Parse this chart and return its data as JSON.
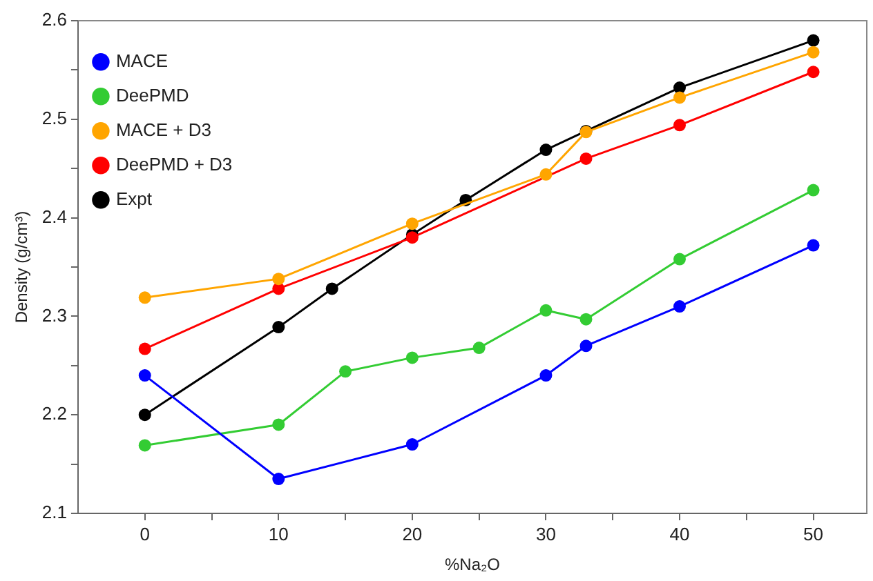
{
  "chart_data": {
    "type": "line",
    "xlabel": "%Na₂O",
    "ylabel": "Density (g/cm³)",
    "xlim": [
      -5,
      54
    ],
    "ylim": [
      2.1,
      2.6
    ],
    "xticks": [
      0,
      {
        "value": 5,
        "label": null
      },
      10,
      {
        "value": 15,
        "label": null
      },
      20,
      {
        "value": 25,
        "label": null
      },
      30,
      {
        "value": 35,
        "label": null
      },
      40,
      {
        "value": 45,
        "label": null
      },
      50
    ],
    "yticks": [
      2.1,
      {
        "value": 2.15,
        "label": null
      },
      2.2,
      {
        "value": 2.25,
        "label": null
      },
      2.3,
      {
        "value": 2.35,
        "label": null
      },
      2.4,
      {
        "value": 2.45,
        "label": null
      },
      2.5,
      {
        "value": 2.55,
        "label": null
      },
      2.6
    ],
    "grid": false,
    "legend": "top left",
    "marker": "circle",
    "line_style": "solid",
    "series": [
      {
        "name": "MACE",
        "color": "#0000ff",
        "x": [
          0,
          10,
          20,
          30,
          33,
          40,
          50
        ],
        "values": [
          2.24,
          2.135,
          2.17,
          2.24,
          2.27,
          2.31,
          2.372
        ]
      },
      {
        "name": "DeePMD",
        "color": "#33cc33",
        "x": [
          0,
          10,
          15,
          20,
          25,
          30,
          33,
          40,
          50
        ],
        "values": [
          2.169,
          2.19,
          2.244,
          2.258,
          2.268,
          2.306,
          2.297,
          2.358,
          2.428
        ]
      },
      {
        "name": "MACE + D3",
        "color": "#ffa500",
        "x": [
          0,
          10,
          20,
          30,
          33,
          40,
          50
        ],
        "values": [
          2.319,
          2.338,
          2.394,
          2.444,
          2.487,
          2.522,
          2.568
        ]
      },
      {
        "name": "DeePMD + D3",
        "color": "#ff0000",
        "x": [
          0,
          10,
          20,
          33,
          40,
          50
        ],
        "values": [
          2.267,
          2.328,
          2.38,
          2.46,
          2.494,
          2.548
        ]
      },
      {
        "name": "Expt",
        "color": "#000000",
        "x": [
          0,
          10,
          14,
          20,
          24,
          30,
          33,
          40,
          50
        ],
        "values": [
          2.2,
          2.289,
          2.328,
          2.383,
          2.418,
          2.469,
          2.488,
          2.532,
          2.58
        ]
      }
    ]
  }
}
